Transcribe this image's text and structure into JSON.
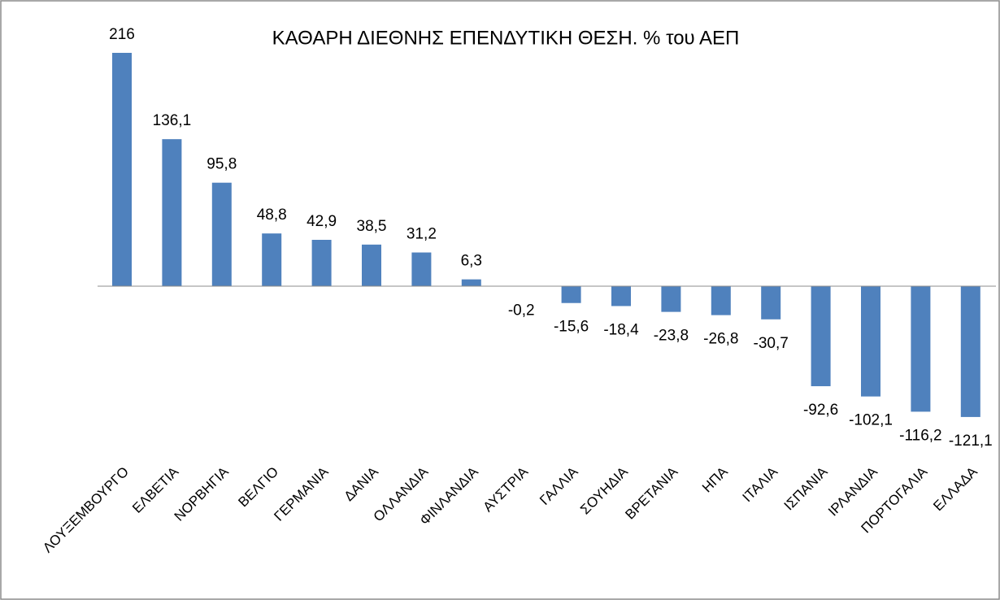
{
  "chart_data": {
    "type": "bar",
    "title": "ΚΑΘΑΡΗ ΔΙΕΘΝΗΣ ΕΠΕΝΔΥΤΙΚΗ ΘΕΣΗ. % του ΑΕΠ",
    "categories": [
      "ΛΟΥΞΕΜΒΟΥΡΓΟ",
      "ΕΛΒΕΤΙΑ",
      "ΝΟΡΒΗΓΙΑ",
      "ΒΕΛΓΙΟ",
      "ΓΕΡΜΑΝΙΑ",
      "ΔΑΝΙΑ",
      "ΟΛΛΑΝΔΙΑ",
      "ΦΙΝΛΑΝΔΙΑ",
      "ΑΥΣΤΡΙΑ",
      "ΓΑΛΛΙΑ",
      "ΣΟΥΗΔΙΑ",
      "ΒΡΕΤΑΝΙΑ",
      "ΗΠΑ",
      "ΙΤΑΛΙΑ",
      "ΙΣΠΑΝΙΑ",
      "ΙΡΛΑΝΔΙΑ",
      "ΠΟΡΤΟΓΑΛΙΑ",
      "ΕΛΛΑΔΑ"
    ],
    "values": [
      216,
      136.1,
      95.8,
      48.8,
      42.9,
      38.5,
      31.2,
      6.3,
      -0.2,
      -15.6,
      -18.4,
      -23.8,
      -26.8,
      -30.7,
      -92.6,
      -102.1,
      -116.2,
      -121.1
    ],
    "value_labels": [
      "216",
      "136,1",
      "95,8",
      "48,8",
      "42,9",
      "38,5",
      "31,2",
      "6,3",
      "-0,2",
      "-15,6",
      "-18,4",
      "-23,8",
      "-26,8",
      "-30,7",
      "-92,6",
      "-102,1",
      "-116,2",
      "-121,1"
    ],
    "color": "#4f81bd"
  }
}
